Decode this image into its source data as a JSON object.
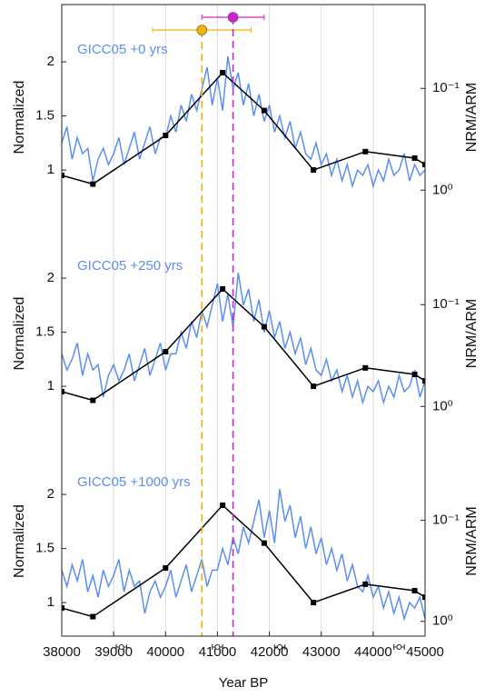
{
  "chart_data": {
    "type": "line",
    "xlabel": "Year BP",
    "xlim": [
      38000,
      45000
    ],
    "xticks": [
      38000,
      39000,
      40000,
      41000,
      42000,
      43000,
      44000,
      45000
    ],
    "grid": true,
    "x": [
      38000,
      38100,
      38200,
      38300,
      38400,
      38500,
      38600,
      38700,
      38800,
      38900,
      39000,
      39100,
      39200,
      39300,
      39400,
      39500,
      39600,
      39700,
      39800,
      39900,
      40000,
      40100,
      40200,
      40300,
      40400,
      40500,
      40600,
      40700,
      40800,
      40900,
      41000,
      41100,
      41200,
      41300,
      41400,
      41500,
      41600,
      41700,
      41800,
      41900,
      42000,
      42100,
      42200,
      42300,
      42400,
      42500,
      42600,
      42700,
      42800,
      42900,
      43000,
      43100,
      43200,
      43300,
      43400,
      43500,
      43600,
      43700,
      43800,
      43900,
      44000,
      44100,
      44200,
      44300,
      44400,
      44500,
      44600,
      44700,
      44800,
      44900,
      45000
    ],
    "ref_x": [
      38000,
      38600,
      40000,
      41100,
      41900,
      42850,
      43850,
      44800,
      45000
    ],
    "age_markers": [
      {
        "x": 40700,
        "xmin": 39750,
        "xmax": 41650,
        "color": "#f0b400"
      },
      {
        "x": 41300,
        "xmin": 40700,
        "xmax": 41900,
        "color": "#d21fd2"
      }
    ],
    "tie_points": [
      {
        "x": 39150,
        "xmin": 39050,
        "xmax": 39250
      },
      {
        "x": 41000,
        "xmin": 40900,
        "xmax": 41100
      },
      {
        "x": 42200,
        "xmin": 42100,
        "xmax": 42300
      },
      {
        "x": 44500,
        "xmin": 44400,
        "xmax": 44600
      }
    ],
    "panels": [
      {
        "ylabel": "Normalized",
        "y2label": "NRM/ARM",
        "ylim": [
          0.53,
          2.53
        ],
        "yticks": [
          1,
          1.5,
          2
        ],
        "y2log": true,
        "y2reverse": true,
        "y2lim": [
          0.015,
          2
        ],
        "y2ticks": [
          {
            "value": 0.1,
            "label": "10⁻¹"
          },
          {
            "value": 1,
            "label": "10⁰"
          }
        ],
        "series": [
          {
            "name": "GICC05 +0 yrs",
            "color": "#5b8ff0",
            "values": [
              1.25,
              1.4,
              1.1,
              1.3,
              1.15,
              1.2,
              0.9,
              1.1,
              1.2,
              1.05,
              1.15,
              1.3,
              1.05,
              1.2,
              1.35,
              1.1,
              1.25,
              1.4,
              1.15,
              1.3,
              1.3,
              1.5,
              1.35,
              1.6,
              1.45,
              1.7,
              1.55,
              1.75,
              1.95,
              1.6,
              1.85,
              1.55,
              2.05,
              1.75,
              1.9,
              1.6,
              1.8,
              1.5,
              1.7,
              1.45,
              1.6,
              1.35,
              1.5,
              1.3,
              1.45,
              1.2,
              1.35,
              1.15,
              1.1,
              1.25,
              1.05,
              1.15,
              0.95,
              1.1,
              0.9,
              1.05,
              0.85,
              1.0,
              0.95,
              1.05,
              0.85,
              1.0,
              0.9,
              1.1,
              0.95,
              1.0,
              1.15,
              0.9,
              1.05,
              0.95,
              1.0
            ]
          },
          {
            "color": "#000000",
            "values": [
              0.95,
              0.87,
              1.32,
              1.9,
              1.55,
              1.0,
              1.17,
              1.11,
              1.05
            ]
          }
        ]
      },
      {
        "ylabel": "Normalized",
        "y2label": "NRM/ARM",
        "ylim": [
          0.53,
          2.53
        ],
        "yticks": [
          1,
          1.5,
          2
        ],
        "y2log": true,
        "y2reverse": true,
        "y2lim": [
          0.015,
          2
        ],
        "y2ticks": [
          {
            "value": 0.1,
            "label": "10⁻¹"
          },
          {
            "value": 1,
            "label": "10⁰"
          }
        ],
        "series": [
          {
            "name": "GICC05 +250 yrs",
            "color": "#5b8ff0",
            "values": [
              1.3,
              1.15,
              1.25,
              1.4,
              1.1,
              1.3,
              1.15,
              1.2,
              0.9,
              1.1,
              1.2,
              1.05,
              1.15,
              1.3,
              1.05,
              1.2,
              1.35,
              1.1,
              1.25,
              1.4,
              1.15,
              1.3,
              1.3,
              1.5,
              1.35,
              1.6,
              1.45,
              1.7,
              1.55,
              1.75,
              1.95,
              1.6,
              1.85,
              1.55,
              2.05,
              1.75,
              1.9,
              1.6,
              1.8,
              1.5,
              1.7,
              1.45,
              1.6,
              1.35,
              1.5,
              1.3,
              1.45,
              1.2,
              1.35,
              1.15,
              1.1,
              1.25,
              1.05,
              1.15,
              0.95,
              1.1,
              0.9,
              1.05,
              0.85,
              1.0,
              0.95,
              1.05,
              0.85,
              1.0,
              0.9,
              1.1,
              0.95,
              1.0,
              1.15,
              0.9,
              1.05
            ]
          },
          {
            "color": "#000000",
            "values": [
              0.95,
              0.87,
              1.32,
              1.9,
              1.55,
              1.0,
              1.17,
              1.11,
              1.05
            ]
          }
        ]
      },
      {
        "ylabel": "Normalized",
        "y2label": "NRM/ARM",
        "ylim": [
          0.69,
          2.53
        ],
        "yticks": [
          1,
          1.5,
          2
        ],
        "y2log": true,
        "y2reverse": true,
        "y2lim": [
          0.015,
          1.4
        ],
        "y2ticks": [
          {
            "value": 0.1,
            "label": "10⁻¹"
          },
          {
            "value": 1,
            "label": "10⁰"
          }
        ],
        "series": [
          {
            "name": "GICC05 +1000 yrs",
            "color": "#5b8ff0",
            "values": [
              1.3,
              1.15,
              1.35,
              1.2,
              1.4,
              1.1,
              1.25,
              1.05,
              1.3,
              1.15,
              1.25,
              1.4,
              1.1,
              1.3,
              1.15,
              1.2,
              0.9,
              1.1,
              1.2,
              1.05,
              1.15,
              1.3,
              1.05,
              1.2,
              1.35,
              1.1,
              1.25,
              1.4,
              1.15,
              1.3,
              1.3,
              1.5,
              1.35,
              1.6,
              1.45,
              1.7,
              1.55,
              1.75,
              1.95,
              1.6,
              1.85,
              1.55,
              2.05,
              1.75,
              1.9,
              1.6,
              1.8,
              1.5,
              1.7,
              1.45,
              1.6,
              1.35,
              1.5,
              1.3,
              1.45,
              1.2,
              1.35,
              1.15,
              1.1,
              1.25,
              1.05,
              1.15,
              0.95,
              1.1,
              0.9,
              1.05,
              0.85,
              1.0,
              0.95,
              1.05,
              0.85
            ]
          },
          {
            "color": "#000000",
            "values": [
              0.95,
              0.87,
              1.32,
              1.9,
              1.55,
              1.0,
              1.17,
              1.11,
              1.05
            ]
          }
        ]
      }
    ]
  }
}
